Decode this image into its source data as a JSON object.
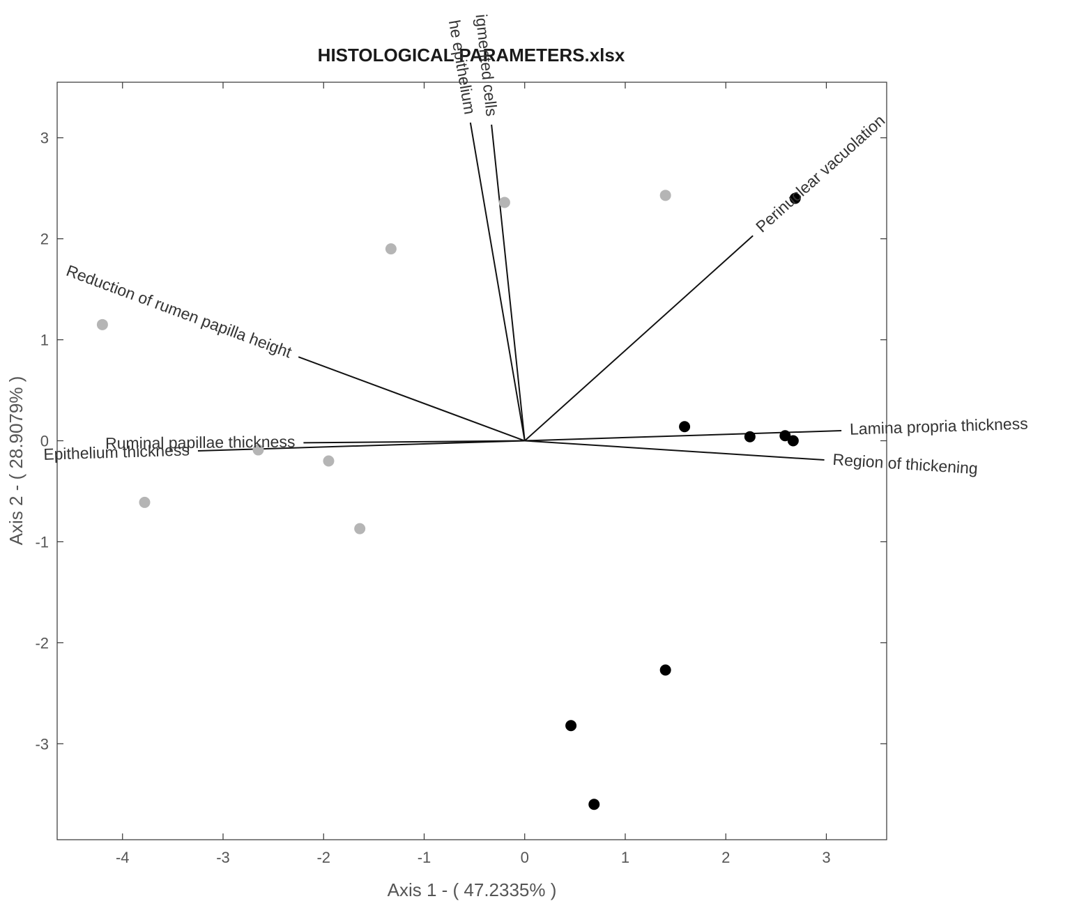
{
  "chart_data": {
    "type": "scatter",
    "subtype": "biplot",
    "title": "HISTOLOGICAL PARAMETERS.xlsx",
    "xlabel": "Axis 1 - ( 47.2335% )",
    "ylabel": "Axis 2 - ( 28.9079% )",
    "xlim": [
      -4.65,
      3.6
    ],
    "ylim": [
      -3.95,
      3.55
    ],
    "xticks": [
      -4,
      -3,
      -2,
      -1,
      0,
      1,
      2,
      3
    ],
    "yticks": [
      -3,
      -2,
      -1,
      0,
      1,
      2,
      3
    ],
    "grid": false,
    "legend": "none",
    "colors": {
      "group_gray": "#b5b5b5",
      "group_black": "#000000",
      "vector": "#111111"
    },
    "series": [
      {
        "color": "#b5b5b5",
        "points": [
          {
            "x": -4.2,
            "y": 1.15
          },
          {
            "x": -3.78,
            "y": -0.61
          },
          {
            "x": -2.65,
            "y": -0.09
          },
          {
            "x": -1.95,
            "y": -0.2
          },
          {
            "x": -1.64,
            "y": -0.87
          },
          {
            "x": -1.33,
            "y": 1.9
          },
          {
            "x": -0.2,
            "y": 2.36
          },
          {
            "x": 1.4,
            "y": 2.43
          }
        ]
      },
      {
        "color": "#000000",
        "points": [
          {
            "x": 1.59,
            "y": 0.14
          },
          {
            "x": 2.24,
            "y": 0.04
          },
          {
            "x": 2.59,
            "y": 0.05
          },
          {
            "x": 2.67,
            "y": 0.0
          },
          {
            "x": 2.69,
            "y": 2.4
          },
          {
            "x": 1.4,
            "y": -2.27
          },
          {
            "x": 0.46,
            "y": -2.82
          },
          {
            "x": 0.69,
            "y": -3.6
          }
        ]
      }
    ],
    "vectors": [
      {
        "label": "Reduction of rumen papilla height",
        "x": -2.25,
        "y": 0.83
      },
      {
        "label": "Epithelium thickness",
        "x": -3.25,
        "y": -0.1
      },
      {
        "label": "Ruminal papillae thickness",
        "x": -2.2,
        "y": -0.02
      },
      {
        "label": "he epithelium",
        "x": -0.54,
        "y": 3.15
      },
      {
        "label": "igmented cells",
        "x": -0.33,
        "y": 3.13
      },
      {
        "label": "Perinuclear vacuolation",
        "x": 2.27,
        "y": 2.03
      },
      {
        "label": "Lamina propria thickness",
        "x": 3.15,
        "y": 0.1
      },
      {
        "label": "Region of thickening",
        "x": 2.98,
        "y": -0.19
      }
    ]
  }
}
